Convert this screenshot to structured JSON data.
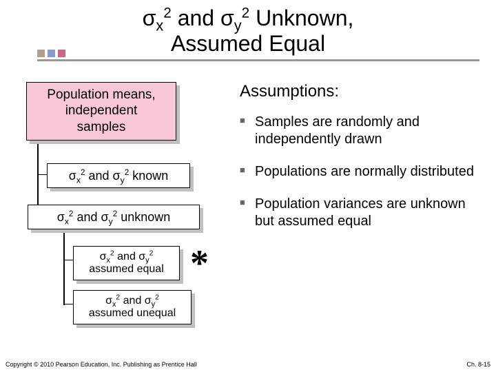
{
  "title_html": "σ<sub>x</sub><sup>2</sup> and σ<sub>y</sub><sup>2</sup> Unknown,<br>Assumed Equal",
  "decorator_colors": [
    "#b0a090",
    "#8899cc",
    "#cc6688"
  ],
  "underline_color": "#999999",
  "tree": {
    "population_html": "Population means,<br>independent<br>samples",
    "population_bg": "#f8c8d8",
    "known_html": "σ<sub>x</sub><sup>2</sup> and σ<sub>y</sub><sup>2</sup> known",
    "unknown_html": "σ<sub>x</sub><sup>2</sup> and σ<sub>y</sub><sup>2</sup> unknown",
    "assumed_equal_html": "σ<sub>x</sub><sup>2</sup> and σ<sub>y</sub><sup>2</sup><br>assumed equal",
    "assumed_unequal_html": "σ<sub>x</sub><sup>2</sup> and σ<sub>y</sub><sup>2</sup><br>assumed unequal"
  },
  "star": "*",
  "assumptions": {
    "heading": "Assumptions:",
    "items": [
      "Samples are randomly and independently drawn",
      "Populations are normally distributed",
      "Population variances are unknown but assumed equal"
    ]
  },
  "footer": {
    "copyright": "Copyright © 2010 Pearson Education, Inc. Publishing as Prentice Hall",
    "page": "Ch. 8-15"
  }
}
